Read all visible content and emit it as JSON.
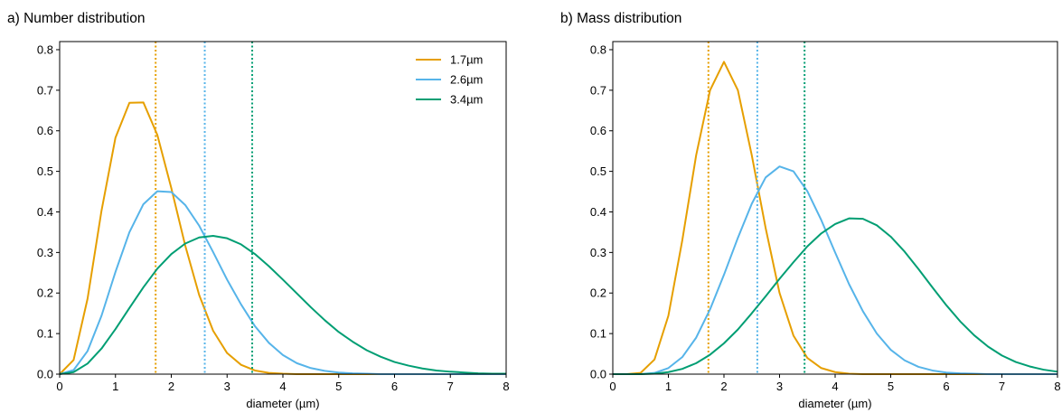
{
  "chart_data": [
    {
      "type": "line",
      "title": "a) Number distribution",
      "xlabel": "diameter (µm)",
      "ylabel": "",
      "xlim": [
        0,
        8
      ],
      "ylim": [
        0,
        0.82
      ],
      "xticks": [
        0,
        1,
        2,
        3,
        4,
        5,
        6,
        7,
        8
      ],
      "yticks": [
        0.0,
        0.1,
        0.2,
        0.3,
        0.4,
        0.5,
        0.6,
        0.7,
        0.8
      ],
      "ytick_labels": [
        "0.0",
        "0.1",
        "0.2",
        "0.3",
        "0.4",
        "0.5",
        "0.6",
        "0.7",
        "0.8"
      ],
      "grid": false,
      "legend": "top-right",
      "x": [
        0,
        0.25,
        0.5,
        0.75,
        1,
        1.25,
        1.5,
        1.75,
        2,
        2.25,
        2.5,
        2.75,
        3,
        3.25,
        3.5,
        3.75,
        4,
        4.25,
        4.5,
        4.75,
        5,
        5.25,
        5.5,
        5.75,
        6,
        6.25,
        6.5,
        6.75,
        7,
        7.25,
        7.5,
        7.75,
        8
      ],
      "series": [
        {
          "name": "1.7µm",
          "color": "#E69F00",
          "vline": 1.72,
          "values": [
            0,
            0.035,
            0.186,
            0.403,
            0.583,
            0.669,
            0.67,
            0.59,
            0.459,
            0.317,
            0.195,
            0.107,
            0.052,
            0.023,
            0.009,
            0.003,
            0.001,
            0,
            0,
            0,
            0,
            0,
            0,
            0,
            0,
            0,
            0,
            0,
            0,
            0,
            0,
            0,
            0
          ]
        },
        {
          "name": "2.6µm",
          "color": "#56B4E9",
          "vline": 2.6,
          "values": [
            0,
            0.01,
            0.057,
            0.144,
            0.252,
            0.35,
            0.419,
            0.451,
            0.449,
            0.417,
            0.366,
            0.301,
            0.233,
            0.172,
            0.118,
            0.077,
            0.047,
            0.027,
            0.015,
            0.008,
            0.004,
            0.002,
            0.001,
            0,
            0,
            0,
            0,
            0,
            0,
            0,
            0,
            0,
            0
          ]
        },
        {
          "name": "3.4µm",
          "color": "#009E73",
          "vline": 3.45,
          "values": [
            0,
            0.005,
            0.026,
            0.063,
            0.111,
            0.163,
            0.214,
            0.26,
            0.296,
            0.322,
            0.337,
            0.341,
            0.335,
            0.32,
            0.296,
            0.266,
            0.233,
            0.199,
            0.165,
            0.133,
            0.104,
            0.08,
            0.059,
            0.043,
            0.03,
            0.021,
            0.014,
            0.009,
            0.006,
            0.004,
            0.002,
            0.001,
            0.001
          ]
        }
      ]
    },
    {
      "type": "line",
      "title": "b) Mass distribution",
      "xlabel": "diameter (µm)",
      "ylabel": "",
      "xlim": [
        0,
        8
      ],
      "ylim": [
        0,
        0.82
      ],
      "xticks": [
        0,
        1,
        2,
        3,
        4,
        5,
        6,
        7,
        8
      ],
      "yticks": [
        0.0,
        0.1,
        0.2,
        0.3,
        0.4,
        0.5,
        0.6,
        0.7,
        0.8
      ],
      "ytick_labels": [
        "0.0",
        "0.1",
        "0.2",
        "0.3",
        "0.4",
        "0.5",
        "0.6",
        "0.7",
        "0.8"
      ],
      "grid": false,
      "legend": "",
      "x": [
        0,
        0.25,
        0.5,
        0.75,
        1,
        1.25,
        1.5,
        1.75,
        2,
        2.25,
        2.5,
        2.75,
        3,
        3.25,
        3.5,
        3.75,
        4,
        4.25,
        4.5,
        4.75,
        5,
        5.25,
        5.5,
        5.75,
        6,
        6.25,
        6.5,
        6.75,
        7,
        7.25,
        7.5,
        7.75,
        8
      ],
      "series": [
        {
          "name": "1.7µm",
          "color": "#E69F00",
          "vline": 1.72,
          "values": [
            0,
            0,
            0.003,
            0.036,
            0.144,
            0.33,
            0.54,
            0.7,
            0.77,
            0.7,
            0.54,
            0.36,
            0.2,
            0.095,
            0.04,
            0.015,
            0.005,
            0.001,
            0,
            0,
            0,
            0,
            0,
            0,
            0,
            0,
            0,
            0,
            0,
            0,
            0,
            0,
            0
          ]
        },
        {
          "name": "2.6µm",
          "color": "#56B4E9",
          "vline": 2.6,
          "values": [
            0,
            0,
            0,
            0.003,
            0.015,
            0.042,
            0.09,
            0.16,
            0.245,
            0.336,
            0.42,
            0.485,
            0.512,
            0.5,
            0.451,
            0.38,
            0.3,
            0.222,
            0.155,
            0.1,
            0.06,
            0.034,
            0.018,
            0.009,
            0.004,
            0.002,
            0.001,
            0,
            0,
            0,
            0,
            0,
            0
          ]
        },
        {
          "name": "3.4µm",
          "color": "#009E73",
          "vline": 3.45,
          "values": [
            0,
            0,
            0,
            0.001,
            0.005,
            0.013,
            0.027,
            0.048,
            0.076,
            0.11,
            0.15,
            0.192,
            0.235,
            0.276,
            0.315,
            0.347,
            0.37,
            0.384,
            0.383,
            0.367,
            0.339,
            0.302,
            0.259,
            0.214,
            0.17,
            0.13,
            0.096,
            0.068,
            0.046,
            0.03,
            0.019,
            0.011,
            0.006
          ]
        }
      ]
    }
  ]
}
